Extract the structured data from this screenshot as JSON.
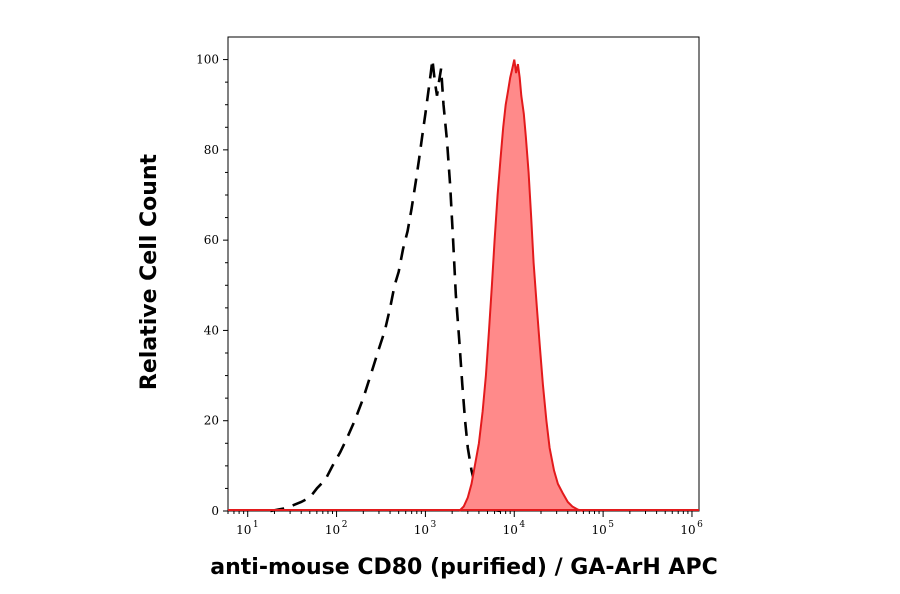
{
  "chart_data": {
    "type": "area",
    "xlabel": "anti-mouse CD80 (purified) / GA-ArH APC",
    "ylabel": "Relative Cell Count",
    "xscale": "log",
    "xlim": [
      6,
      1200000
    ],
    "ylim": [
      0,
      105
    ],
    "x_ticks": [
      {
        "base": "10",
        "exp": "1",
        "value": 10
      },
      {
        "base": "10",
        "exp": "2",
        "value": 100
      },
      {
        "base": "10",
        "exp": "3",
        "value": 1000
      },
      {
        "base": "10",
        "exp": "4",
        "value": 10000
      },
      {
        "base": "10",
        "exp": "5",
        "value": 100000
      },
      {
        "base": "10",
        "exp": "6",
        "value": 1000000
      }
    ],
    "y_ticks": [
      "0",
      "20",
      "40",
      "60",
      "80",
      "100"
    ],
    "y_tick_values": [
      0,
      20,
      40,
      60,
      80,
      100
    ],
    "colors": {
      "filled_line": "#e31a1c",
      "filled_area": "#ff8a8a",
      "dashed_line": "#000000"
    },
    "series": [
      {
        "style": "dashed-black",
        "x": [
          18,
          25,
          30,
          40,
          50,
          60,
          75,
          90,
          110,
          130,
          160,
          200,
          250,
          300,
          350,
          400,
          450,
          500,
          560,
          630,
          700,
          780,
          850,
          920,
          1000,
          1080,
          1150,
          1200,
          1280,
          1350,
          1420,
          1500,
          1600,
          1750,
          1900,
          2050,
          2200,
          2400,
          2600,
          2800,
          3000,
          3300,
          3600,
          4000,
          4500,
          5000,
          5500,
          6000,
          7000
        ],
        "y": [
          0,
          0.5,
          1,
          2,
          3,
          5,
          7,
          10,
          13,
          16,
          20,
          25,
          31,
          36,
          40,
          45,
          50,
          53,
          58,
          62,
          67,
          73,
          78,
          83,
          88,
          93,
          97,
          100,
          95,
          92,
          95,
          98,
          90,
          82,
          72,
          60,
          48,
          38,
          28,
          20,
          14,
          9,
          6,
          4,
          2,
          1,
          0.5,
          0.2,
          0
        ]
      },
      {
        "style": "filled-red",
        "x": [
          2400,
          2700,
          3000,
          3300,
          3600,
          4000,
          4400,
          4800,
          5200,
          5600,
          6000,
          6500,
          7000,
          7500,
          8000,
          8500,
          9000,
          9500,
          10000,
          10500,
          11000,
          11500,
          12000,
          12800,
          13500,
          14500,
          15500,
          16500,
          18000,
          19500,
          21000,
          23000,
          25000,
          28000,
          31000,
          35000,
          40000,
          45000,
          52000,
          60000
        ],
        "y": [
          0,
          1,
          3,
          6,
          10,
          15,
          22,
          30,
          40,
          50,
          60,
          70,
          78,
          85,
          90,
          93,
          96,
          98,
          100,
          97,
          99,
          96,
          92,
          88,
          83,
          75,
          65,
          55,
          45,
          36,
          28,
          20,
          14,
          9,
          6,
          4,
          2,
          1,
          0.3,
          0
        ]
      }
    ]
  }
}
